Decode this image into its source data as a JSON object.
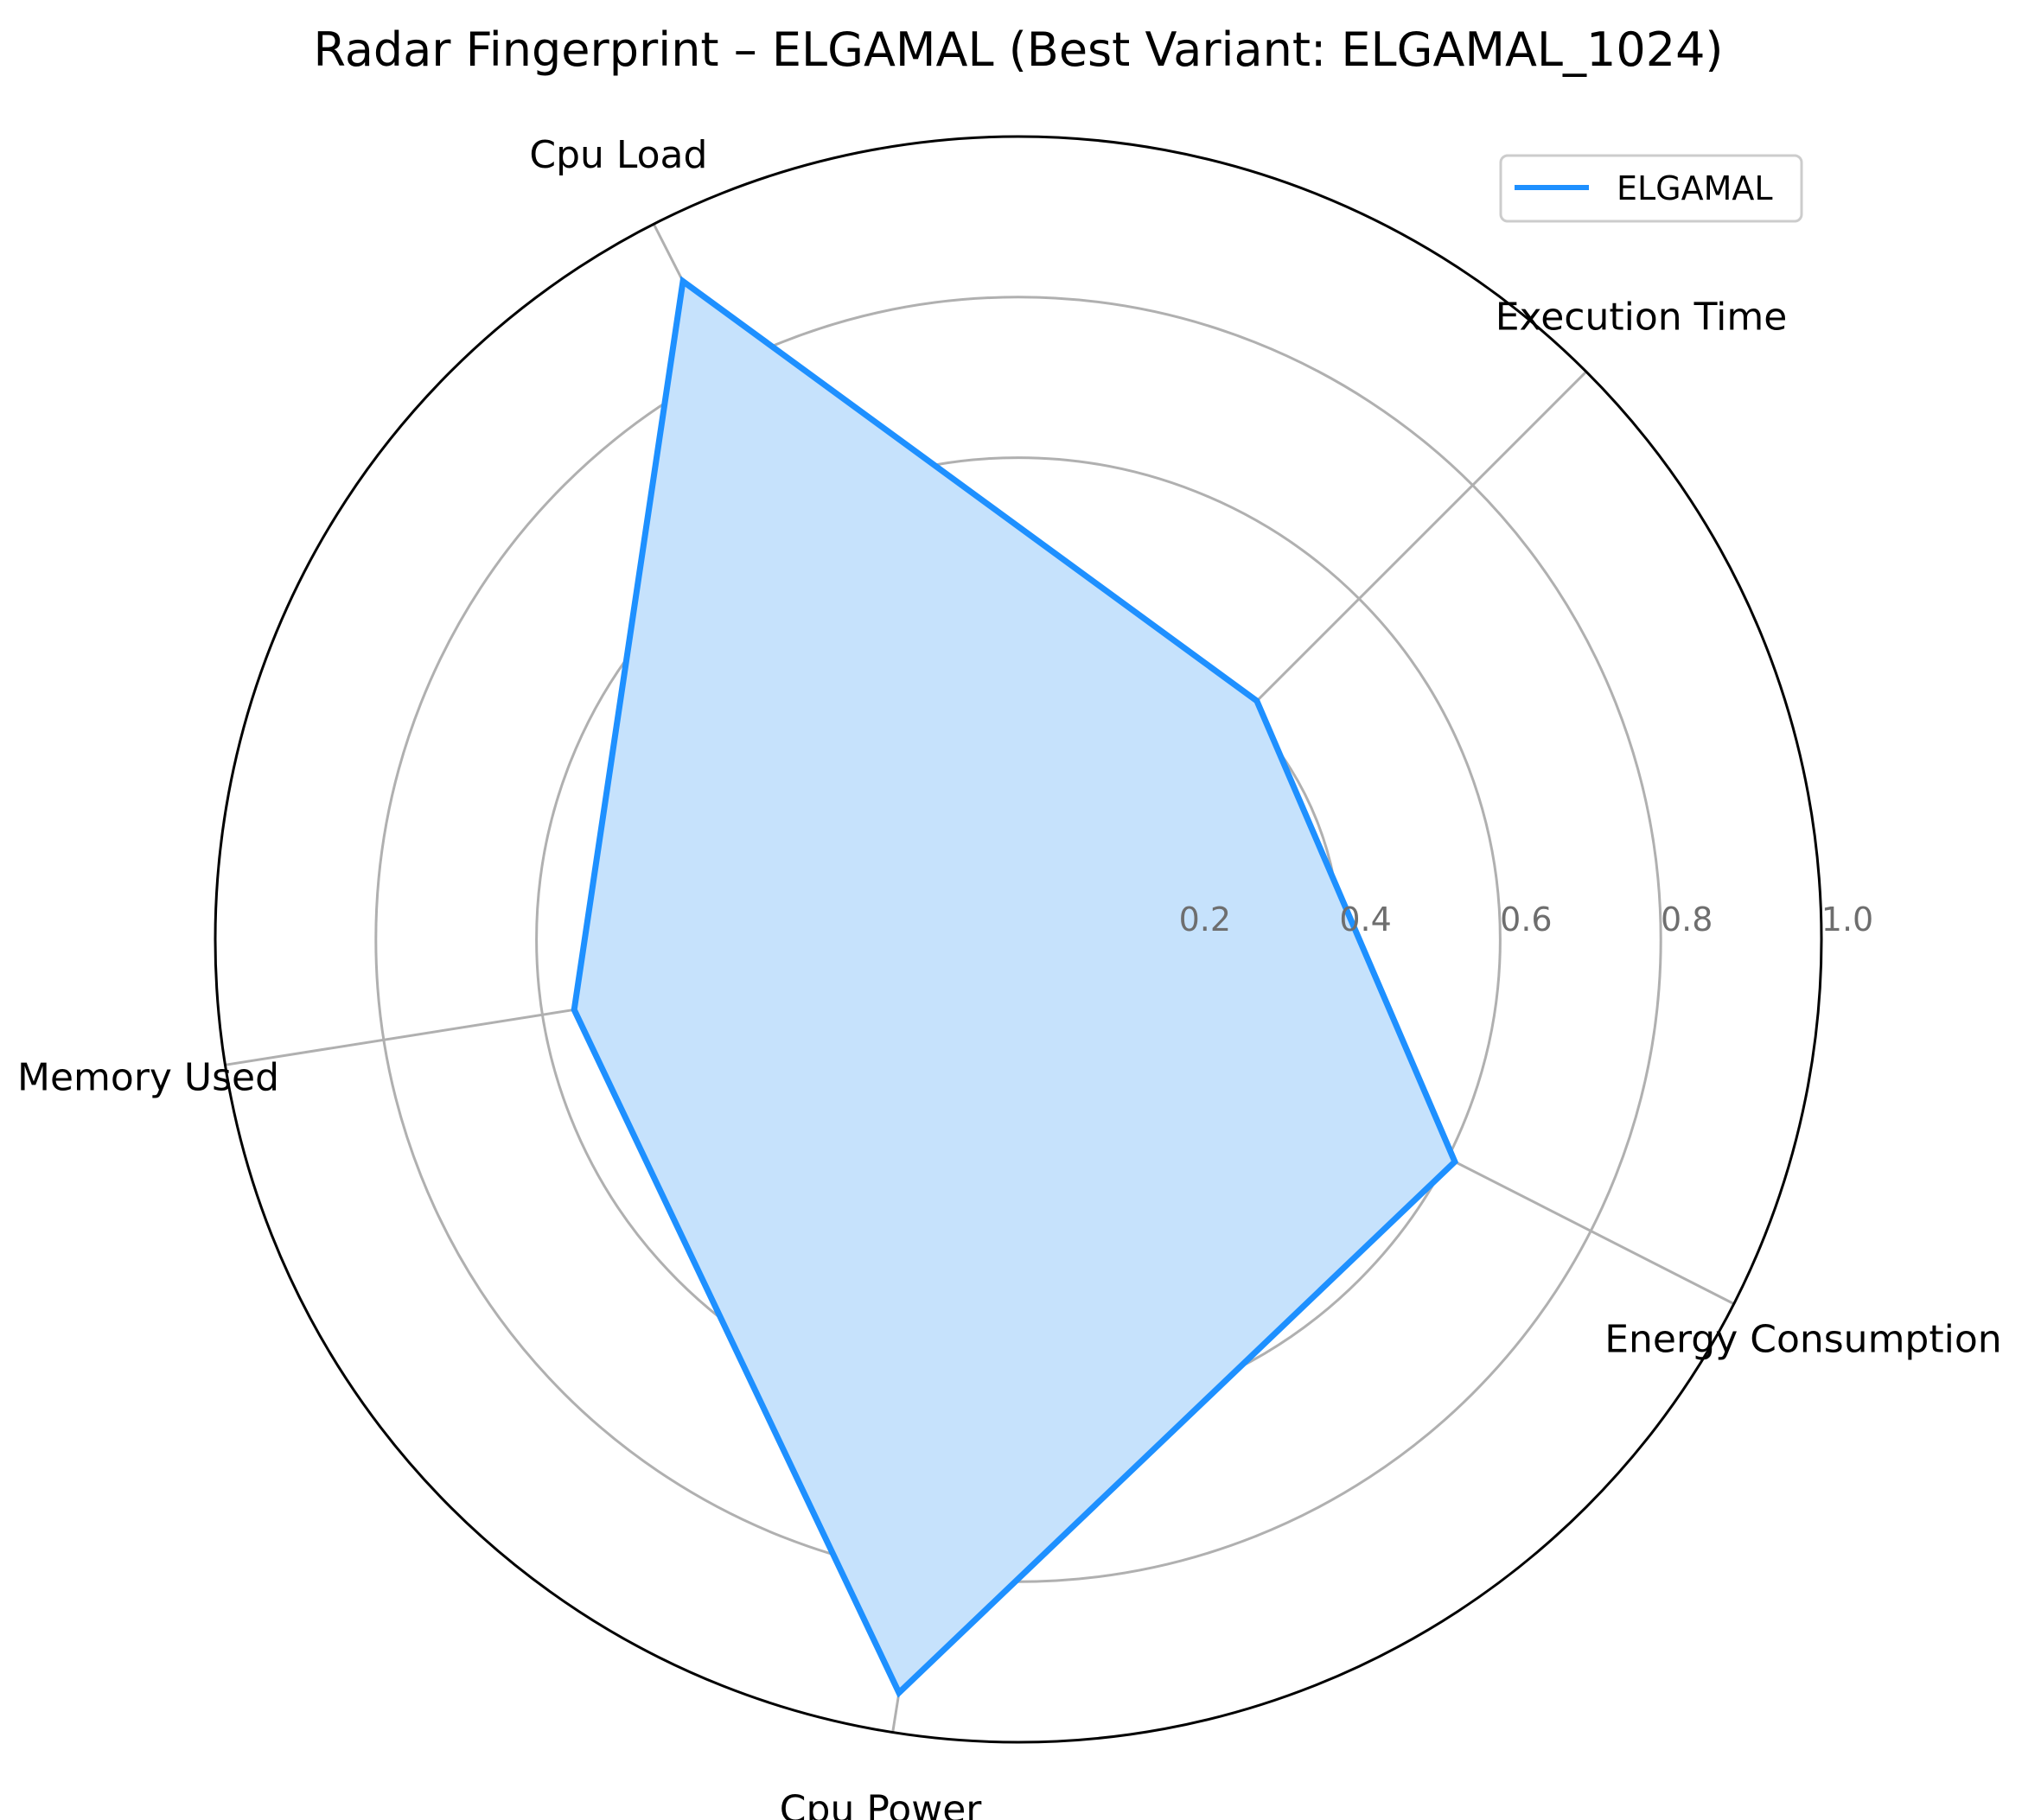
{
  "chart_data": {
    "type": "radar",
    "title": "Radar Fingerprint – ELGAMAL (Best Variant: ELGAMAL_1024)",
    "categories": [
      "Execution Time",
      "Cpu Load",
      "Memory Used",
      "Cpu Power",
      "Energy Consumption"
    ],
    "axis_angles_deg": [
      45,
      117,
      189,
      261,
      333
    ],
    "rlim": [
      0,
      1.0
    ],
    "rticks": [
      0.2,
      0.4,
      0.6,
      0.8,
      1.0
    ],
    "rtick_labels": [
      "0.2",
      "0.4",
      "0.6",
      "0.8",
      "1.0"
    ],
    "grid": true,
    "legend_position": "upper-right",
    "series": [
      {
        "name": "ELGAMAL",
        "values": [
          0.42,
          0.92,
          0.56,
          0.95,
          0.61
        ],
        "color": "#1e90ff",
        "fill_color": "#c6e2fc"
      }
    ]
  }
}
